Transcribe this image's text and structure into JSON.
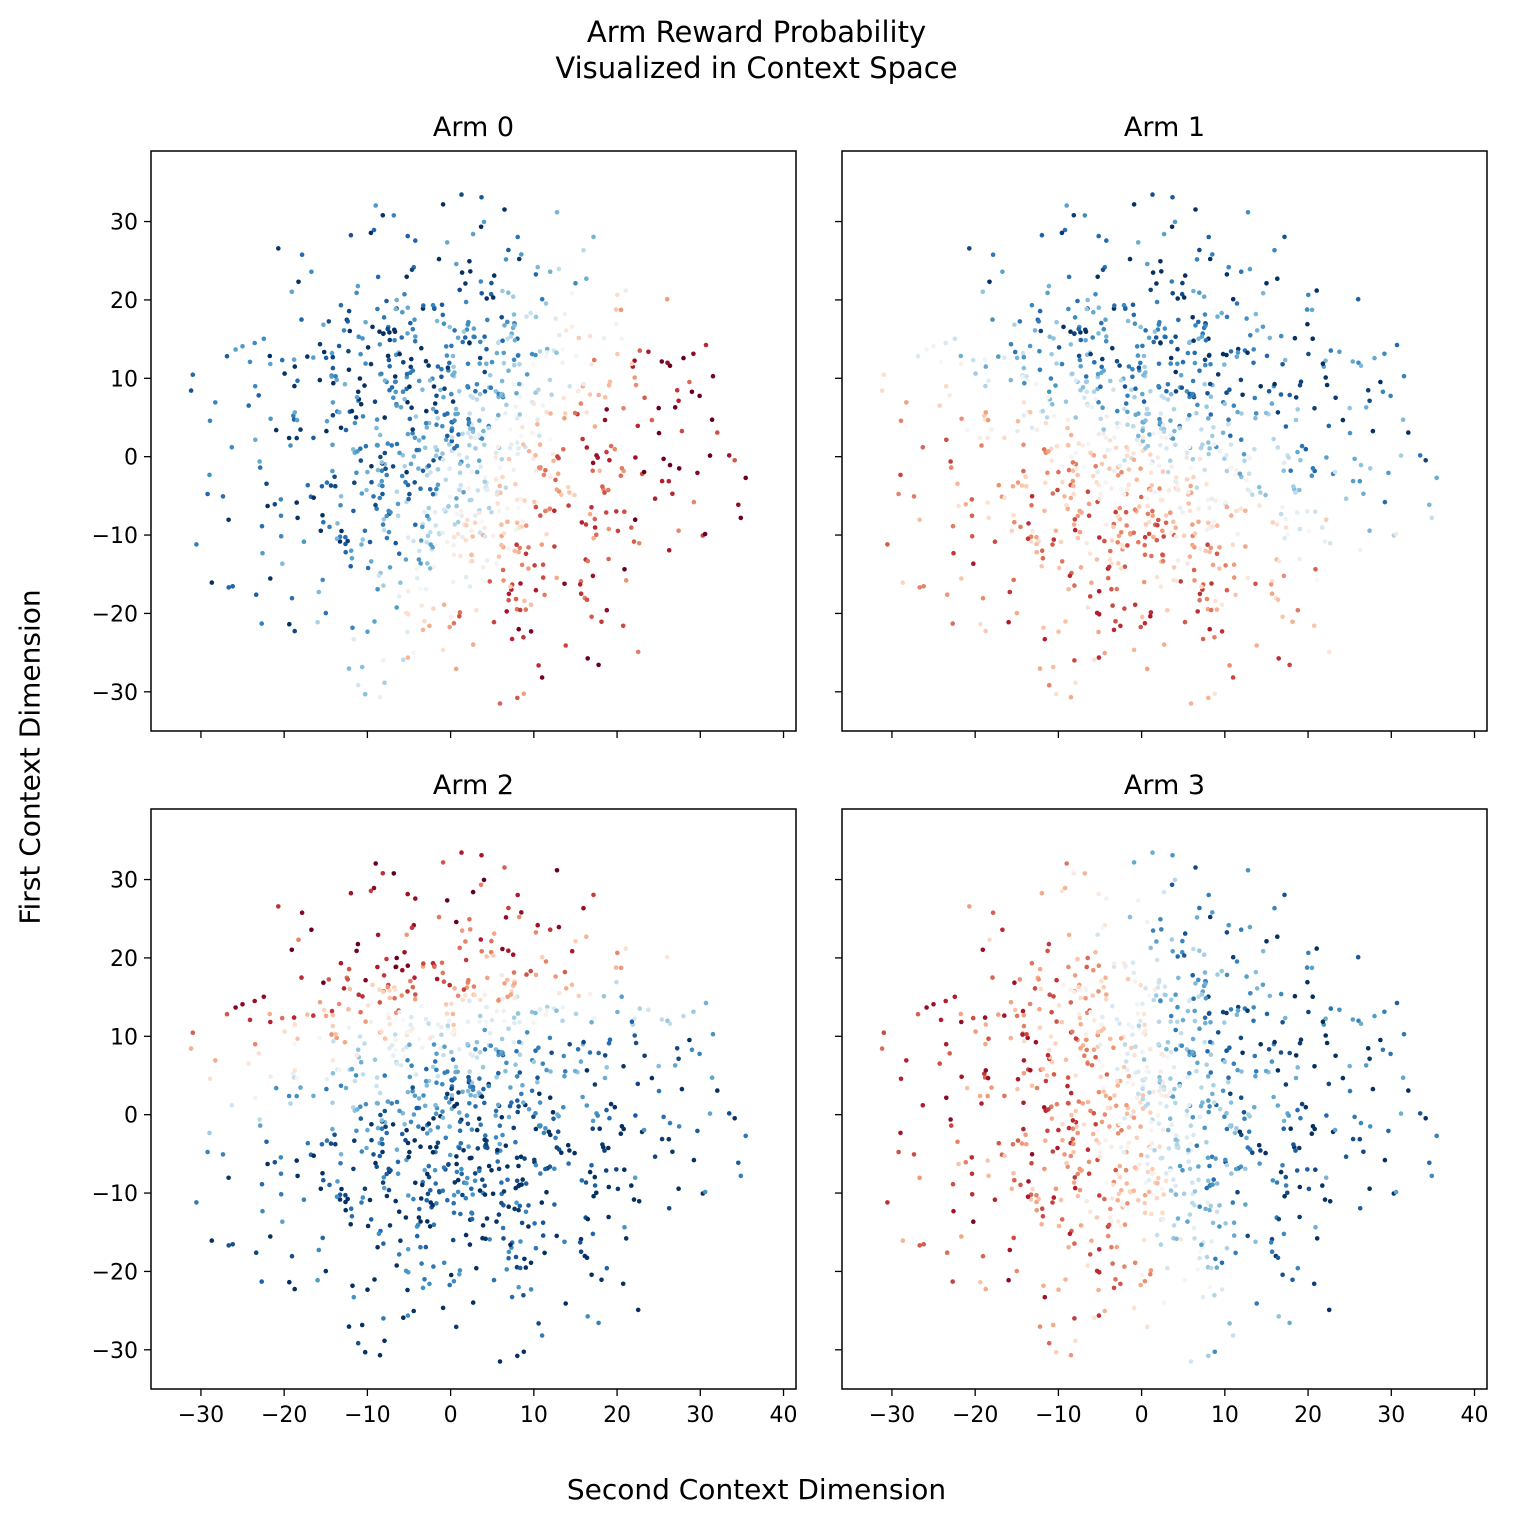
{
  "figure": {
    "title_line1": "Arm Reward Probability",
    "title_line2": "Visualized in Context Space",
    "xlabel": "Second Context Dimension",
    "ylabel": "First Context Dimension"
  },
  "chart_data": [
    {
      "type": "scatter",
      "title": "Arm 0",
      "xlim": [
        -36,
        41.5
      ],
      "ylim": [
        -35,
        39
      ],
      "xticks": [
        -30,
        -20,
        -10,
        0,
        10,
        20,
        30,
        40
      ],
      "yticks": [
        -30,
        -20,
        -10,
        0,
        10,
        20,
        30
      ],
      "xticklabels": [
        "−30",
        "−20",
        "−10",
        "0",
        "10",
        "20",
        "30",
        "40"
      ],
      "yticklabels": [
        "−30",
        "−20",
        "−10",
        "0",
        "10",
        "20",
        "30"
      ],
      "colormap": "RdBu_r",
      "color_range": [
        0,
        1
      ],
      "color_field": "reward_probability",
      "show_xticklabels": false,
      "show_yticklabels": true,
      "grid": false,
      "point_count": 1000,
      "hotspot": {
        "center": [
          25,
          5
        ],
        "value": "high (red)"
      },
      "lowspot": {
        "center": [
          -8,
          -12
        ],
        "value": "low (blue)"
      }
    },
    {
      "type": "scatter",
      "title": "Arm 1",
      "xlim": [
        -36,
        41.5
      ],
      "ylim": [
        -35,
        39
      ],
      "xticks": [
        -30,
        -20,
        -10,
        0,
        10,
        20,
        30,
        40
      ],
      "yticks": [
        -30,
        -20,
        -10,
        0,
        10,
        20,
        30
      ],
      "xticklabels": [
        "−30",
        "−20",
        "−10",
        "0",
        "10",
        "20",
        "30",
        "40"
      ],
      "yticklabels": [
        "−30",
        "−20",
        "−10",
        "0",
        "10",
        "20",
        "30"
      ],
      "colormap": "RdBu_r",
      "color_range": [
        0,
        1
      ],
      "color_field": "reward_probability",
      "show_xticklabels": false,
      "show_yticklabels": false,
      "grid": false,
      "point_count": 1000,
      "hotspot": {
        "center": [
          8,
          -18
        ],
        "value": "moderate (light red)"
      },
      "lowspot": {
        "center": [
          -2,
          22
        ],
        "value": "low (dark blue)"
      }
    },
    {
      "type": "scatter",
      "title": "Arm 2",
      "xlim": [
        -36,
        41.5
      ],
      "ylim": [
        -35,
        39
      ],
      "xticks": [
        -30,
        -20,
        -10,
        0,
        10,
        20,
        30,
        40
      ],
      "yticks": [
        -30,
        -20,
        -10,
        0,
        10,
        20,
        30
      ],
      "xticklabels": [
        "−30",
        "−20",
        "−10",
        "0",
        "10",
        "20",
        "30",
        "40"
      ],
      "yticklabels": [
        "−30",
        "−20",
        "−10",
        "0",
        "10",
        "20",
        "30"
      ],
      "colormap": "RdBu_r",
      "color_range": [
        0,
        1
      ],
      "color_field": "reward_probability",
      "show_xticklabels": true,
      "show_yticklabels": true,
      "grid": false,
      "point_count": 1000,
      "hotspot": {
        "center": [
          -5,
          24
        ],
        "value": "high (red)"
      },
      "lowspot": {
        "center": [
          5,
          -18
        ],
        "value": "low (blue)"
      }
    },
    {
      "type": "scatter",
      "title": "Arm 3",
      "xlim": [
        -36,
        41.5
      ],
      "ylim": [
        -35,
        39
      ],
      "xticks": [
        -30,
        -20,
        -10,
        0,
        10,
        20,
        30,
        40
      ],
      "yticks": [
        -30,
        -20,
        -10,
        0,
        10,
        20,
        30
      ],
      "xticklabels": [
        "−30",
        "−20",
        "−10",
        "0",
        "10",
        "20",
        "30",
        "40"
      ],
      "yticklabels": [
        "−30",
        "−20",
        "−10",
        "0",
        "10",
        "20",
        "30"
      ],
      "colormap": "RdBu_r",
      "color_range": [
        0,
        1
      ],
      "color_field": "reward_probability",
      "show_xticklabels": true,
      "show_yticklabels": false,
      "grid": false,
      "point_count": 1000,
      "hotspot": {
        "center": [
          -12,
          0
        ],
        "value": "moderate (light red)"
      },
      "lowspot": {
        "center": [
          22,
          2
        ],
        "value": "low (dark blue)"
      }
    }
  ]
}
